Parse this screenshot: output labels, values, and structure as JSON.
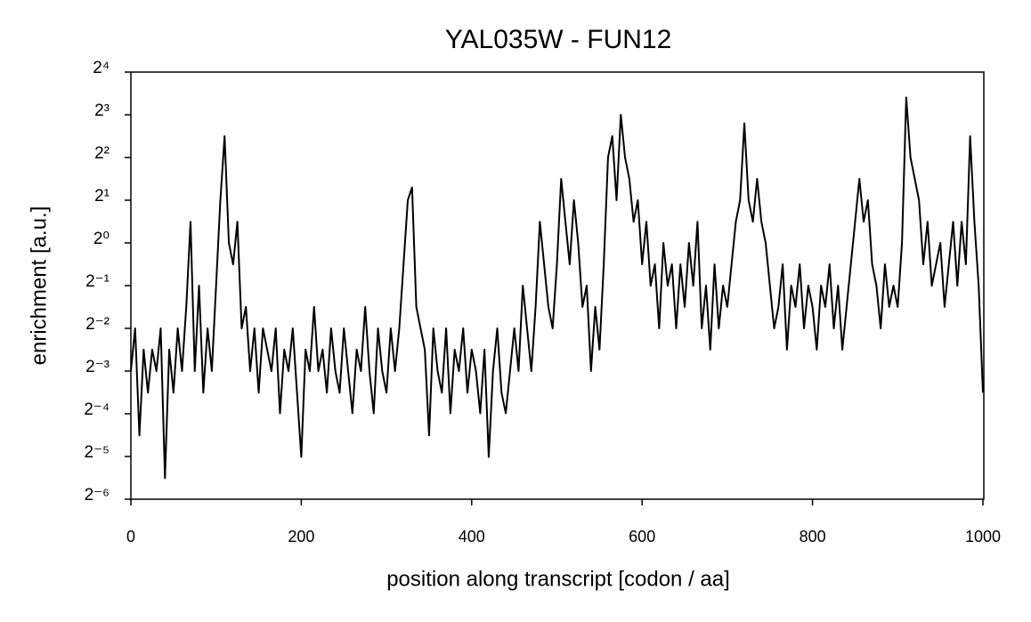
{
  "chart_data": {
    "type": "line",
    "title": "YAL035W - FUN12",
    "x_label": "position along transcript [codon / aa]",
    "y_label": "enrichment [a.u.]",
    "x": [
      0,
      5,
      10,
      15,
      20,
      25,
      30,
      35,
      40,
      45,
      50,
      55,
      60,
      65,
      70,
      75,
      80,
      85,
      90,
      95,
      100,
      105,
      110,
      115,
      120,
      125,
      130,
      135,
      140,
      145,
      150,
      155,
      160,
      165,
      170,
      175,
      180,
      185,
      190,
      195,
      200,
      205,
      210,
      215,
      220,
      225,
      230,
      235,
      240,
      245,
      250,
      255,
      260,
      265,
      270,
      275,
      280,
      285,
      290,
      295,
      300,
      305,
      310,
      315,
      320,
      325,
      330,
      335,
      340,
      345,
      350,
      355,
      360,
      365,
      370,
      375,
      380,
      385,
      390,
      395,
      400,
      405,
      410,
      415,
      420,
      425,
      430,
      435,
      440,
      445,
      450,
      455,
      460,
      465,
      470,
      475,
      480,
      485,
      490,
      495,
      500,
      505,
      510,
      515,
      520,
      525,
      530,
      535,
      540,
      545,
      550,
      555,
      560,
      565,
      570,
      575,
      580,
      585,
      590,
      595,
      600,
      605,
      610,
      615,
      620,
      625,
      630,
      635,
      640,
      645,
      650,
      655,
      660,
      665,
      670,
      675,
      680,
      685,
      690,
      695,
      700,
      705,
      710,
      715,
      720,
      725,
      730,
      735,
      740,
      745,
      750,
      755,
      760,
      765,
      770,
      775,
      780,
      785,
      790,
      795,
      800,
      805,
      810,
      815,
      820,
      825,
      830,
      835,
      840,
      845,
      850,
      855,
      860,
      865,
      870,
      875,
      880,
      885,
      890,
      895,
      900,
      905,
      910,
      915,
      920,
      925,
      930,
      935,
      940,
      945,
      950,
      955,
      960,
      965,
      970,
      975,
      980,
      985,
      990,
      995,
      1000
    ],
    "values": [
      0.125,
      0.25,
      0.044,
      0.177,
      0.088,
      0.177,
      0.125,
      0.25,
      0.022,
      0.177,
      0.088,
      0.25,
      0.125,
      0.354,
      1.41,
      0.125,
      0.5,
      0.088,
      0.25,
      0.125,
      0.5,
      2,
      5.66,
      1,
      0.707,
      1.41,
      0.25,
      0.354,
      0.125,
      0.25,
      0.088,
      0.25,
      0.177,
      0.125,
      0.25,
      0.063,
      0.177,
      0.125,
      0.25,
      0.088,
      0.031,
      0.177,
      0.125,
      0.354,
      0.125,
      0.177,
      0.088,
      0.25,
      0.125,
      0.088,
      0.25,
      0.125,
      0.063,
      0.177,
      0.125,
      0.354,
      0.125,
      0.063,
      0.25,
      0.125,
      0.088,
      0.25,
      0.125,
      0.25,
      0.707,
      2,
      2.46,
      0.354,
      0.25,
      0.177,
      0.044,
      0.25,
      0.125,
      0.088,
      0.25,
      0.063,
      0.177,
      0.125,
      0.25,
      0.088,
      0.177,
      0.125,
      0.063,
      0.177,
      0.031,
      0.125,
      0.25,
      0.088,
      0.063,
      0.125,
      0.25,
      0.125,
      0.5,
      0.25,
      0.125,
      0.354,
      1.41,
      0.707,
      0.354,
      0.25,
      0.707,
      2.83,
      1.41,
      0.707,
      2,
      1,
      0.354,
      0.5,
      0.125,
      0.354,
      0.177,
      0.707,
      4,
      5.66,
      2,
      8,
      4,
      2.83,
      1.41,
      2,
      0.707,
      1.41,
      0.5,
      0.707,
      0.25,
      1,
      0.5,
      0.707,
      0.25,
      0.707,
      0.354,
      1,
      0.5,
      1.41,
      0.25,
      0.5,
      0.177,
      0.707,
      0.25,
      0.5,
      0.354,
      0.707,
      1.41,
      2,
      6.96,
      2,
      1.41,
      2.83,
      1.41,
      1,
      0.5,
      0.25,
      0.354,
      0.707,
      0.177,
      0.5,
      0.354,
      0.707,
      0.25,
      0.5,
      0.354,
      0.177,
      0.5,
      0.354,
      0.707,
      0.25,
      0.5,
      0.177,
      0.354,
      0.707,
      1.41,
      2.83,
      1.41,
      2,
      0.707,
      0.5,
      0.25,
      0.707,
      0.354,
      0.5,
      0.354,
      1,
      10.6,
      4,
      2.83,
      2,
      0.707,
      1.41,
      0.5,
      0.707,
      1,
      0.354,
      0.707,
      1.41,
      0.5,
      1.41,
      0.707,
      5.66,
      1.41,
      0.5,
      0.088
    ],
    "color": "#000000",
    "log_base": 2,
    "xlim": [
      0,
      1000
    ],
    "xticks": [
      0,
      200,
      400,
      600,
      800,
      1000
    ],
    "ylim": [
      0.015625,
      16
    ],
    "yticks": [
      {
        "value": 0.015625,
        "label": "2⁻⁶"
      },
      {
        "value": 0.03125,
        "label": "2⁻⁵"
      },
      {
        "value": 0.0625,
        "label": "2⁻⁴"
      },
      {
        "value": 0.125,
        "label": "2⁻³"
      },
      {
        "value": 0.25,
        "label": "2⁻²"
      },
      {
        "value": 0.5,
        "label": "2⁻¹"
      },
      {
        "value": 1,
        "label": "2⁰"
      },
      {
        "value": 2,
        "label": "2¹"
      },
      {
        "value": 4,
        "label": "2²"
      },
      {
        "value": 8,
        "label": "2³"
      },
      {
        "value": 16,
        "label": "2⁴"
      }
    ],
    "grid": false
  }
}
